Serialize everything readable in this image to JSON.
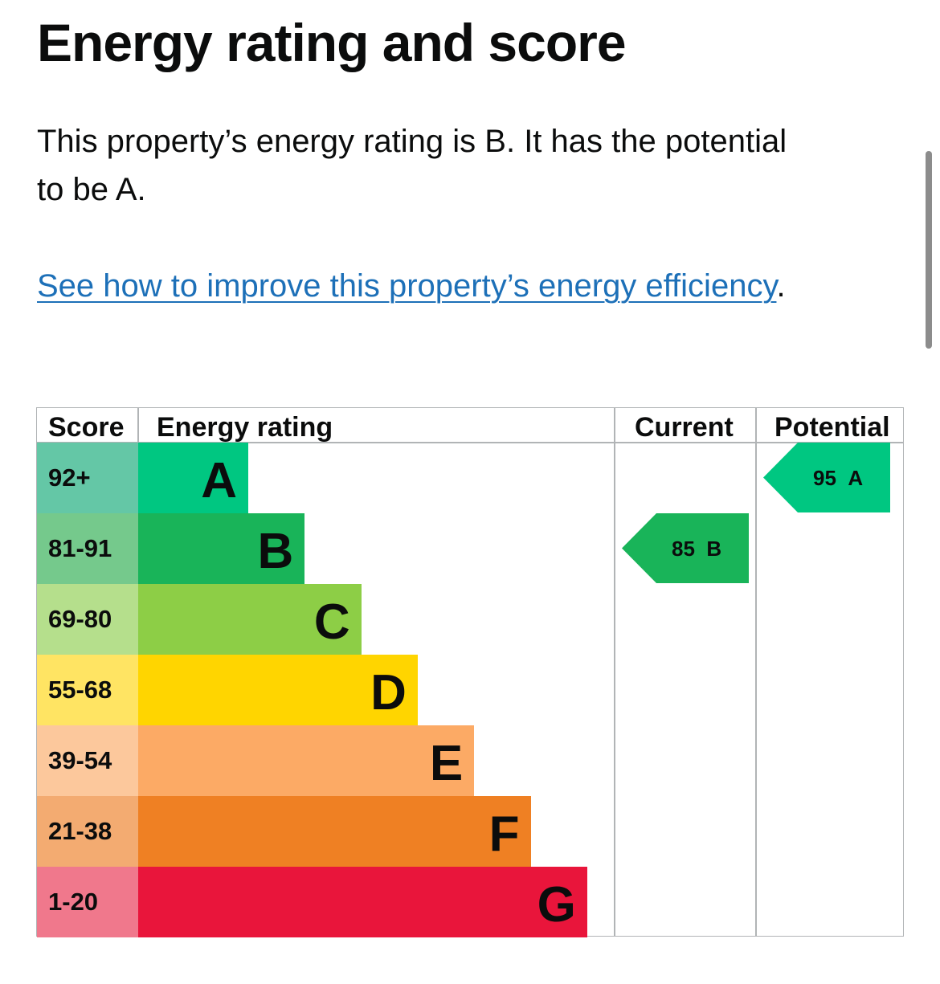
{
  "page": {
    "title": "Energy rating and score",
    "summary": "This property’s energy rating is B. It has the potential to be A.",
    "link_text": "See how to improve this property’s energy efficiency",
    "link_suffix": "."
  },
  "table": {
    "headers": {
      "score": "Score",
      "rating": "Energy rating",
      "current": "Current",
      "potential": "Potential"
    },
    "bands": [
      {
        "band": "A",
        "score": "92+",
        "color": "#00c781",
        "score_bg": "#64c7a6"
      },
      {
        "band": "B",
        "score": "81-91",
        "color": "#19b459",
        "score_bg": "#75c98c"
      },
      {
        "band": "C",
        "score": "69-80",
        "color": "#8dce46",
        "score_bg": "#b5df8c"
      },
      {
        "band": "D",
        "score": "55-68",
        "color": "#ffd500",
        "score_bg": "#ffe463"
      },
      {
        "band": "E",
        "score": "39-54",
        "color": "#fcaa65",
        "score_bg": "#fcc89c"
      },
      {
        "band": "F",
        "score": "21-38",
        "color": "#ef8023",
        "score_bg": "#f3ab71"
      },
      {
        "band": "G",
        "score": "1-20",
        "color": "#e9153b",
        "score_bg": "#f0788c"
      }
    ],
    "current": {
      "score": "85",
      "band": "B",
      "color": "#19b459"
    },
    "potential": {
      "score": "95",
      "band": "A",
      "color": "#00c781"
    }
  }
}
